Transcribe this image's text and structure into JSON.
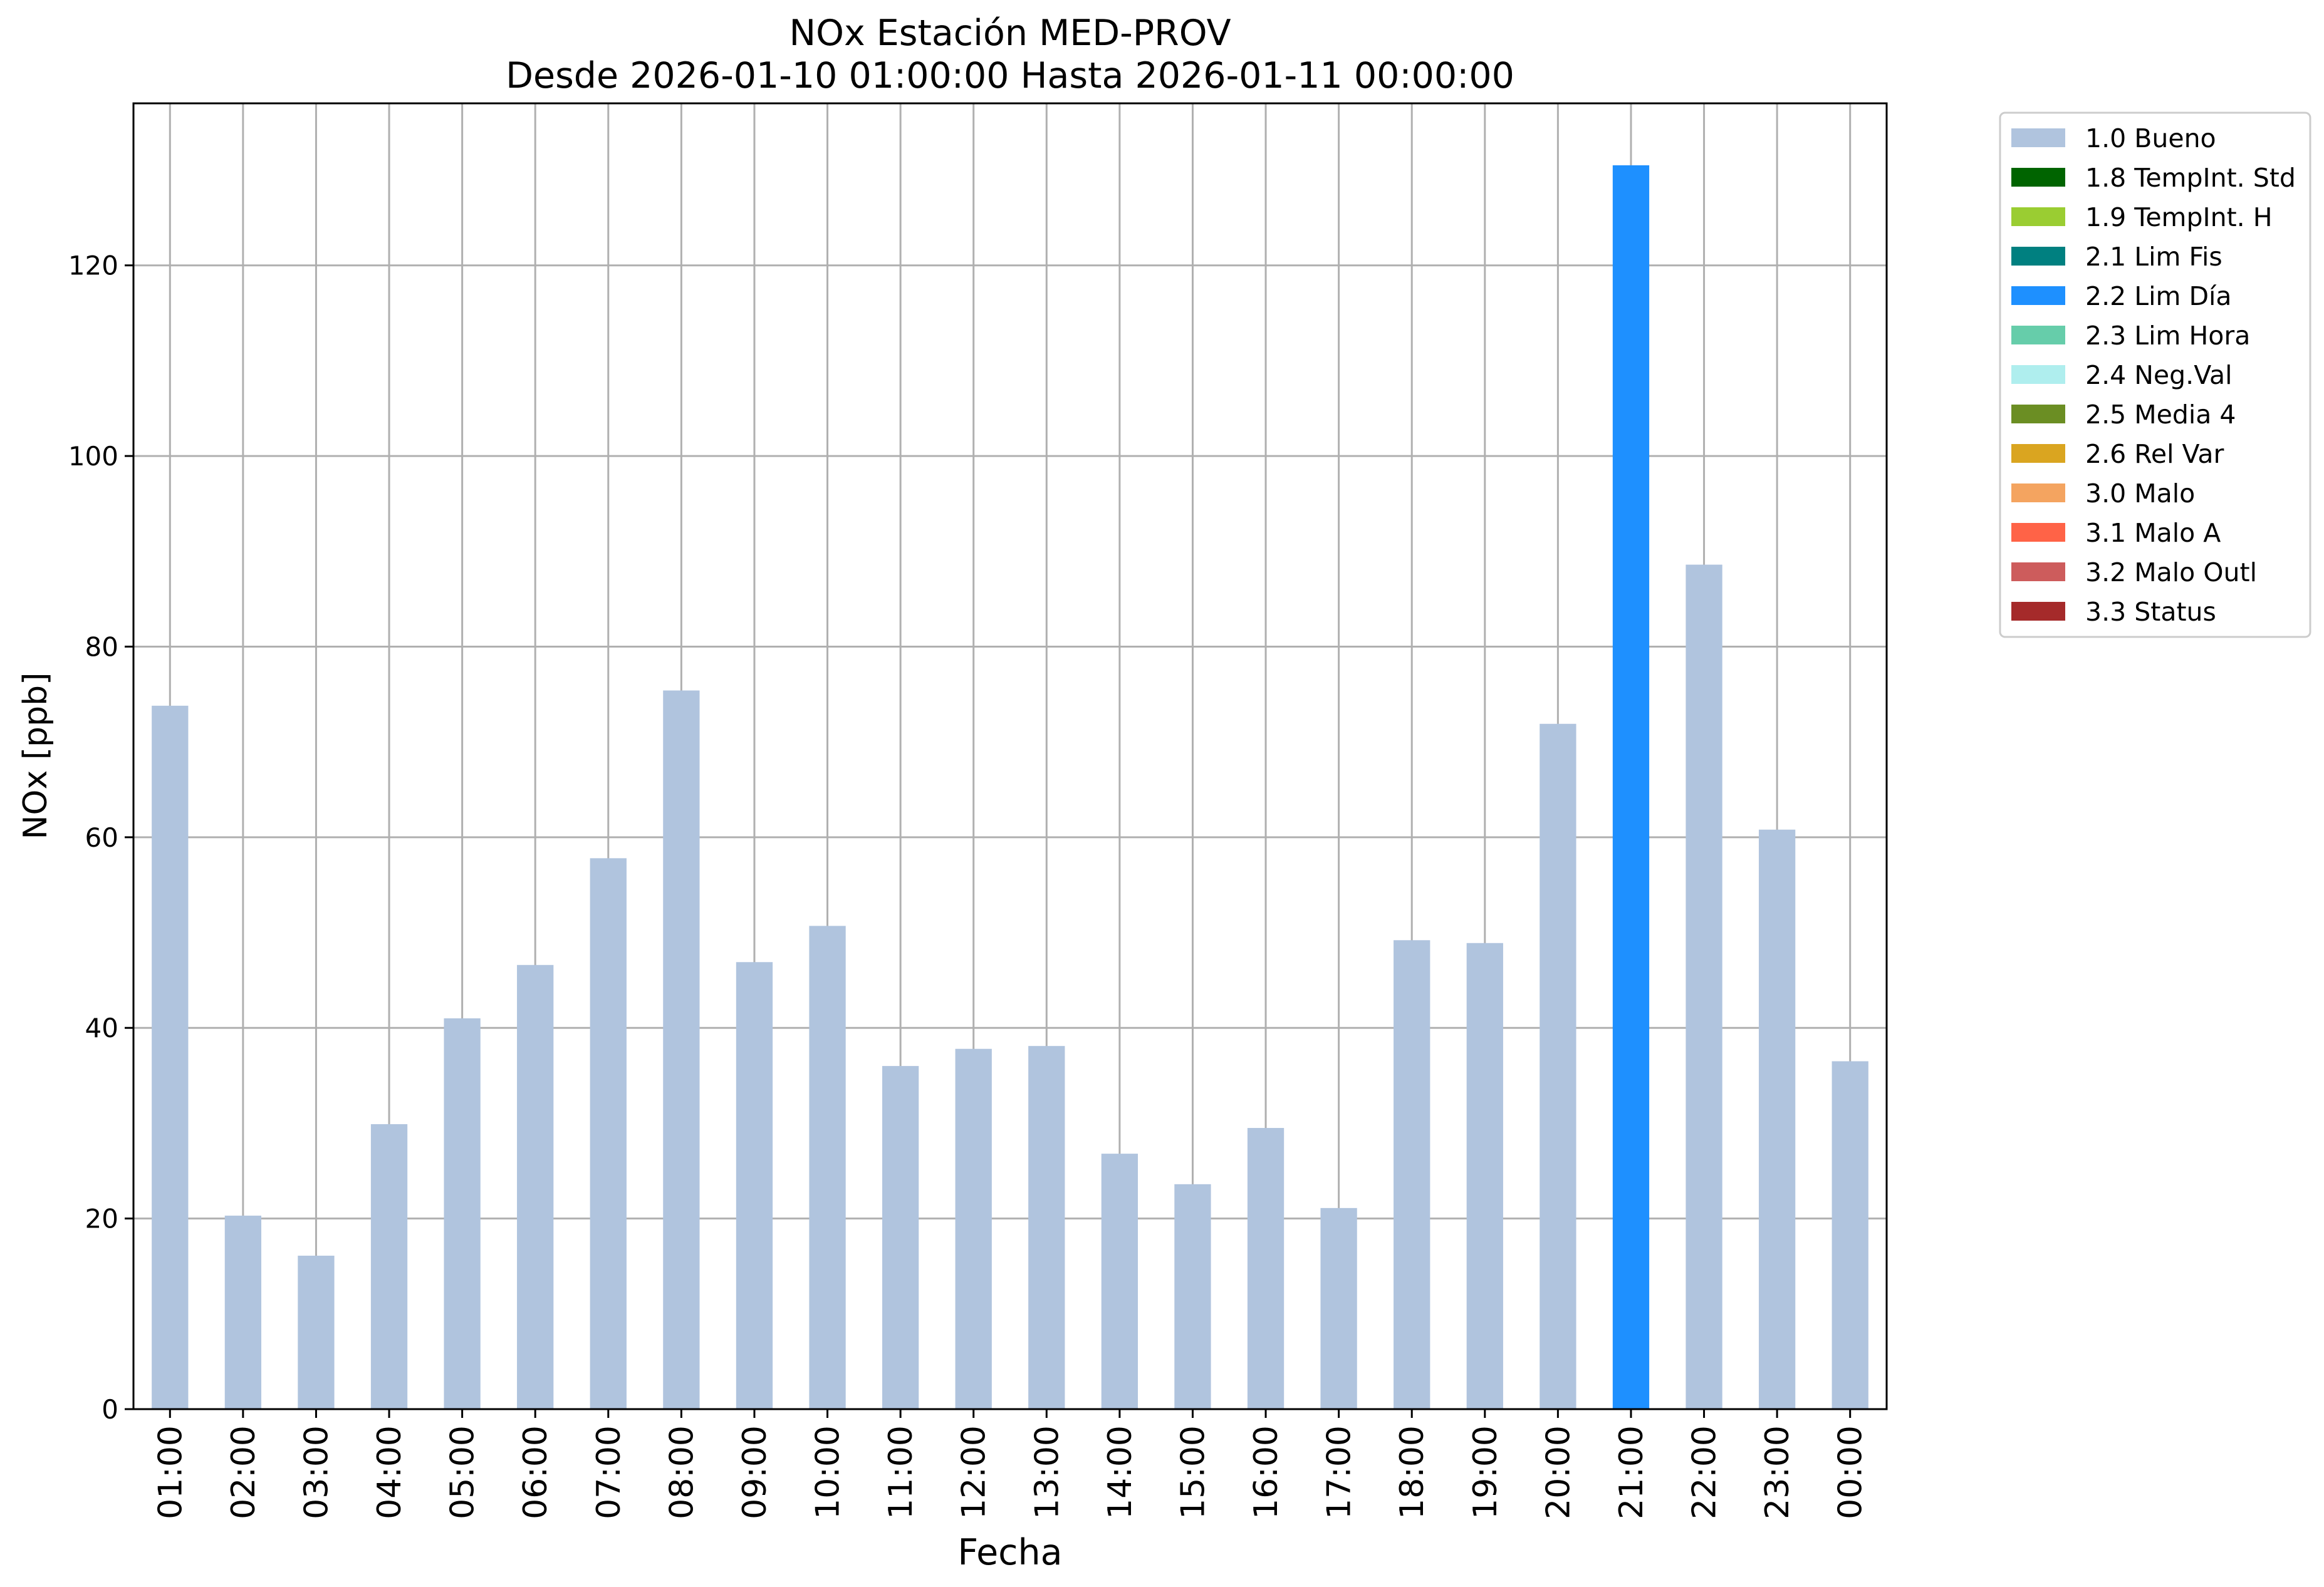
{
  "chart_data": {
    "type": "bar",
    "title": "NOx Estación MED-PROV",
    "subtitle": "Desde 2026-01-10 01:00:00 Hasta 2026-01-11 00:00:00",
    "xlabel": "Fecha",
    "ylabel": "NOx [ppb]",
    "ylim": [
      0,
      137
    ],
    "yticks": [
      0,
      20,
      40,
      60,
      80,
      100,
      120
    ],
    "grid": true,
    "legend_position": "outside-right-top",
    "categories": [
      "01:00",
      "02:00",
      "03:00",
      "04:00",
      "05:00",
      "06:00",
      "07:00",
      "08:00",
      "09:00",
      "10:00",
      "11:00",
      "12:00",
      "13:00",
      "14:00",
      "15:00",
      "16:00",
      "17:00",
      "18:00",
      "19:00",
      "20:00",
      "21:00",
      "22:00",
      "23:00",
      "00:00"
    ],
    "values": [
      73.8,
      20.3,
      16.1,
      29.9,
      41.0,
      46.6,
      57.8,
      75.4,
      46.9,
      50.7,
      36.0,
      37.8,
      38.1,
      26.8,
      23.6,
      29.5,
      21.1,
      49.2,
      48.9,
      71.9,
      130.5,
      88.6,
      60.8,
      36.5
    ],
    "flags": [
      "1.0 Bueno",
      "1.0 Bueno",
      "1.0 Bueno",
      "1.0 Bueno",
      "1.0 Bueno",
      "1.0 Bueno",
      "1.0 Bueno",
      "1.0 Bueno",
      "1.0 Bueno",
      "1.0 Bueno",
      "1.0 Bueno",
      "1.0 Bueno",
      "1.0 Bueno",
      "1.0 Bueno",
      "1.0 Bueno",
      "1.0 Bueno",
      "1.0 Bueno",
      "1.0 Bueno",
      "1.0 Bueno",
      "1.0 Bueno",
      "2.2 Lim Día",
      "1.0 Bueno",
      "1.0 Bueno",
      "1.0 Bueno"
    ],
    "legend": [
      {
        "label": "1.0 Bueno",
        "color": "#b0c4de"
      },
      {
        "label": "1.8 TempInt. Std",
        "color": "#006400"
      },
      {
        "label": "1.9 TempInt. H",
        "color": "#9acd32"
      },
      {
        "label": "2.1 Lim Fis",
        "color": "#008080"
      },
      {
        "label": "2.2 Lim Día",
        "color": "#1e90ff"
      },
      {
        "label": "2.3 Lim Hora",
        "color": "#66cdaa"
      },
      {
        "label": "2.4 Neg.Val",
        "color": "#afeeee"
      },
      {
        "label": "2.5 Media 4",
        "color": "#6b8e23"
      },
      {
        "label": "2.6 Rel Var",
        "color": "#daa520"
      },
      {
        "label": "3.0 Malo",
        "color": "#f4a460"
      },
      {
        "label": "3.1 Malo A",
        "color": "#ff6347"
      },
      {
        "label": "3.2 Malo Outl",
        "color": "#cd5c5c"
      },
      {
        "label": "3.3 Status",
        "color": "#a52a2a"
      }
    ]
  }
}
